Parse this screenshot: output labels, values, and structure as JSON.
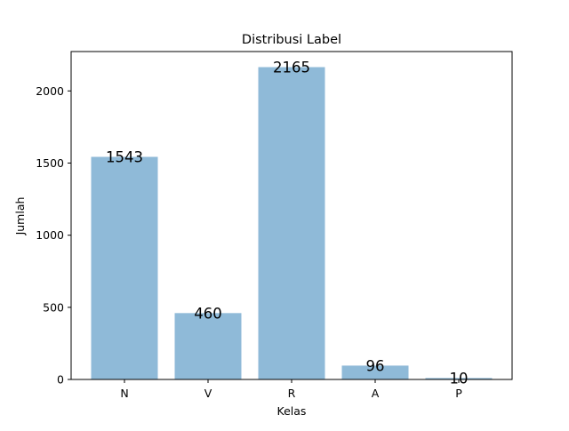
{
  "chart_data": {
    "type": "bar",
    "title": "Distribusi Label",
    "xlabel": "Kelas",
    "ylabel": "Jumlah",
    "categories": [
      "N",
      "V",
      "R",
      "A",
      "P"
    ],
    "values": [
      1543,
      460,
      2165,
      96,
      10
    ],
    "data_labels": [
      "1543",
      "460",
      "2165",
      "96",
      "10"
    ],
    "yticks": [
      0,
      500,
      1000,
      1500,
      2000
    ],
    "ylim": [
      0,
      2273
    ],
    "bar_color": "#8fbad8",
    "grid": false,
    "legend": "none"
  }
}
